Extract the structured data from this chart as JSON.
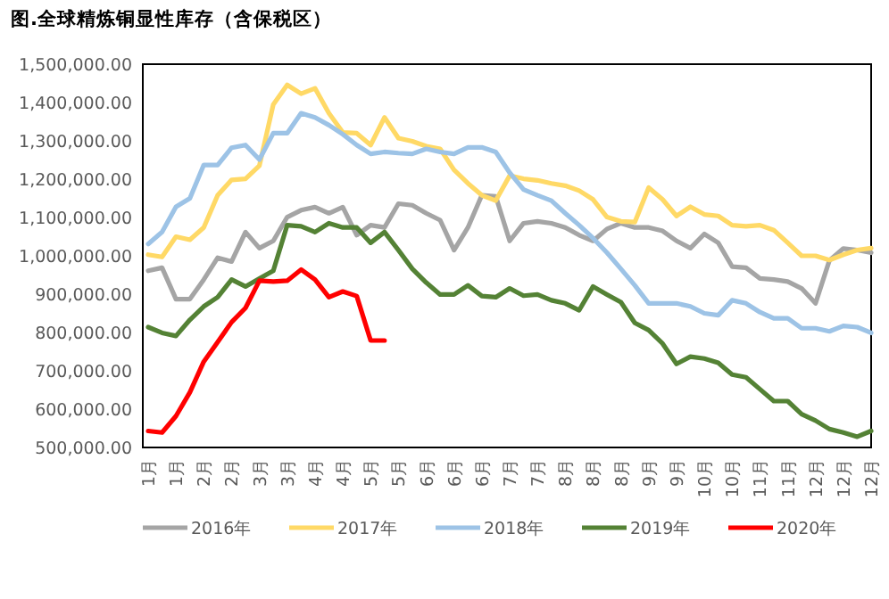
{
  "chart_data": {
    "type": "line",
    "title": "图.全球精炼铜显性库存（含保税区）",
    "categories": [
      "1月",
      null,
      "1月",
      null,
      "2月",
      null,
      "2月",
      null,
      "3月",
      null,
      "3月",
      null,
      "4月",
      null,
      "4月",
      null,
      "5月",
      null,
      "5月",
      null,
      "6月",
      null,
      "6月",
      null,
      "6月",
      null,
      "7月",
      null,
      "7月",
      null,
      "8月",
      null,
      "8月",
      null,
      "8月",
      null,
      "9月",
      null,
      "9月",
      null,
      "10月",
      null,
      "10月",
      null,
      "11月",
      null,
      "11月",
      null,
      "12月",
      null,
      "12月",
      null,
      "12月"
    ],
    "ylim": [
      500000,
      1500000
    ],
    "yticks": [
      {
        "value": 500000,
        "label": "500,000.00"
      },
      {
        "value": 600000,
        "label": "600,000.00"
      },
      {
        "value": 700000,
        "label": "700,000.00"
      },
      {
        "value": 800000,
        "label": "800,000.00"
      },
      {
        "value": 900000,
        "label": "900,000.00"
      },
      {
        "value": 1000000,
        "label": "1,000,000.00"
      },
      {
        "value": 1100000,
        "label": "1,100,000.00"
      },
      {
        "value": 1200000,
        "label": "1,200,000.00"
      },
      {
        "value": 1300000,
        "label": "1,300,000.00"
      },
      {
        "value": 1400000,
        "label": "1,400,000.00"
      },
      {
        "value": 1500000,
        "label": "1,500,000.00"
      }
    ],
    "legend": "bottom",
    "series": [
      {
        "name": "2016年",
        "color": "#a5a5a5",
        "values": [
          961000,
          969000,
          887000,
          887000,
          938000,
          995000,
          985000,
          1062000,
          1020000,
          1039000,
          1101000,
          1119000,
          1127000,
          1111000,
          1127000,
          1054000,
          1080000,
          1074000,
          1136000,
          1132000,
          1111000,
          1093000,
          1015000,
          1074000,
          1158000,
          1155000,
          1039000,
          1085000,
          1090000,
          1085000,
          1074000,
          1054000,
          1039000,
          1070000,
          1085000,
          1074000,
          1074000,
          1065000,
          1039000,
          1020000,
          1057000,
          1034000,
          972000,
          969000,
          941000,
          938000,
          933000,
          915000,
          876000,
          988000,
          1019000,
          1015000,
          1008000
        ]
      },
      {
        "name": "2017年",
        "color": "#ffd966",
        "values": [
          1003000,
          997000,
          1050000,
          1042000,
          1074000,
          1158000,
          1198000,
          1201000,
          1235000,
          1395000,
          1446000,
          1423000,
          1437000,
          1372000,
          1322000,
          1320000,
          1289000,
          1361000,
          1307000,
          1299000,
          1286000,
          1279000,
          1224000,
          1189000,
          1158000,
          1144000,
          1209000,
          1201000,
          1197000,
          1189000,
          1183000,
          1170000,
          1147000,
          1101000,
          1090000,
          1088000,
          1178000,
          1147000,
          1104000,
          1128000,
          1108000,
          1104000,
          1080000,
          1077000,
          1080000,
          1067000,
          1034000,
          1000000,
          1000000,
          989000,
          1003000,
          1015000,
          1020000
        ]
      },
      {
        "name": "2018年",
        "color": "#9dc3e6",
        "values": [
          1031000,
          1062000,
          1128000,
          1150000,
          1237000,
          1237000,
          1282000,
          1289000,
          1251000,
          1320000,
          1320000,
          1372000,
          1361000,
          1341000,
          1317000,
          1289000,
          1266000,
          1271000,
          1268000,
          1266000,
          1279000,
          1271000,
          1266000,
          1283000,
          1283000,
          1271000,
          1217000,
          1173000,
          1158000,
          1144000,
          1111000,
          1080000,
          1046000,
          1008000,
          966000,
          923000,
          876000,
          876000,
          876000,
          868000,
          850000,
          845000,
          884000,
          876000,
          853000,
          837000,
          837000,
          811000,
          811000,
          803000,
          817000,
          814000,
          799000
        ]
      },
      {
        "name": "2019年",
        "color": "#548235",
        "values": [
          814000,
          799000,
          791000,
          833000,
          868000,
          892000,
          938000,
          920000,
          941000,
          961000,
          1080000,
          1077000,
          1062000,
          1085000,
          1074000,
          1074000,
          1034000,
          1062000,
          1015000,
          966000,
          930000,
          899000,
          899000,
          923000,
          895000,
          892000,
          915000,
          896000,
          899000,
          884000,
          876000,
          858000,
          920000,
          899000,
          879000,
          825000,
          806000,
          771000,
          718000,
          737000,
          732000,
          721000,
          690000,
          683000,
          652000,
          621000,
          621000,
          587000,
          570000,
          548000,
          539000,
          528000,
          543000
        ]
      },
      {
        "name": "2020年",
        "color": "#ff0000",
        "values": [
          543000,
          539000,
          582000,
          644000,
          724000,
          775000,
          827000,
          864000,
          935000,
          933000,
          935000,
          964000,
          938000,
          892000,
          907000,
          895000,
          779000,
          779000,
          null,
          null,
          null,
          null,
          null,
          null,
          null,
          null,
          null,
          null,
          null,
          null,
          null,
          null,
          null,
          null,
          null,
          null,
          null,
          null,
          null,
          null,
          null,
          null,
          null,
          null,
          null,
          null,
          null,
          null,
          null,
          null,
          null,
          null,
          null
        ]
      }
    ]
  }
}
